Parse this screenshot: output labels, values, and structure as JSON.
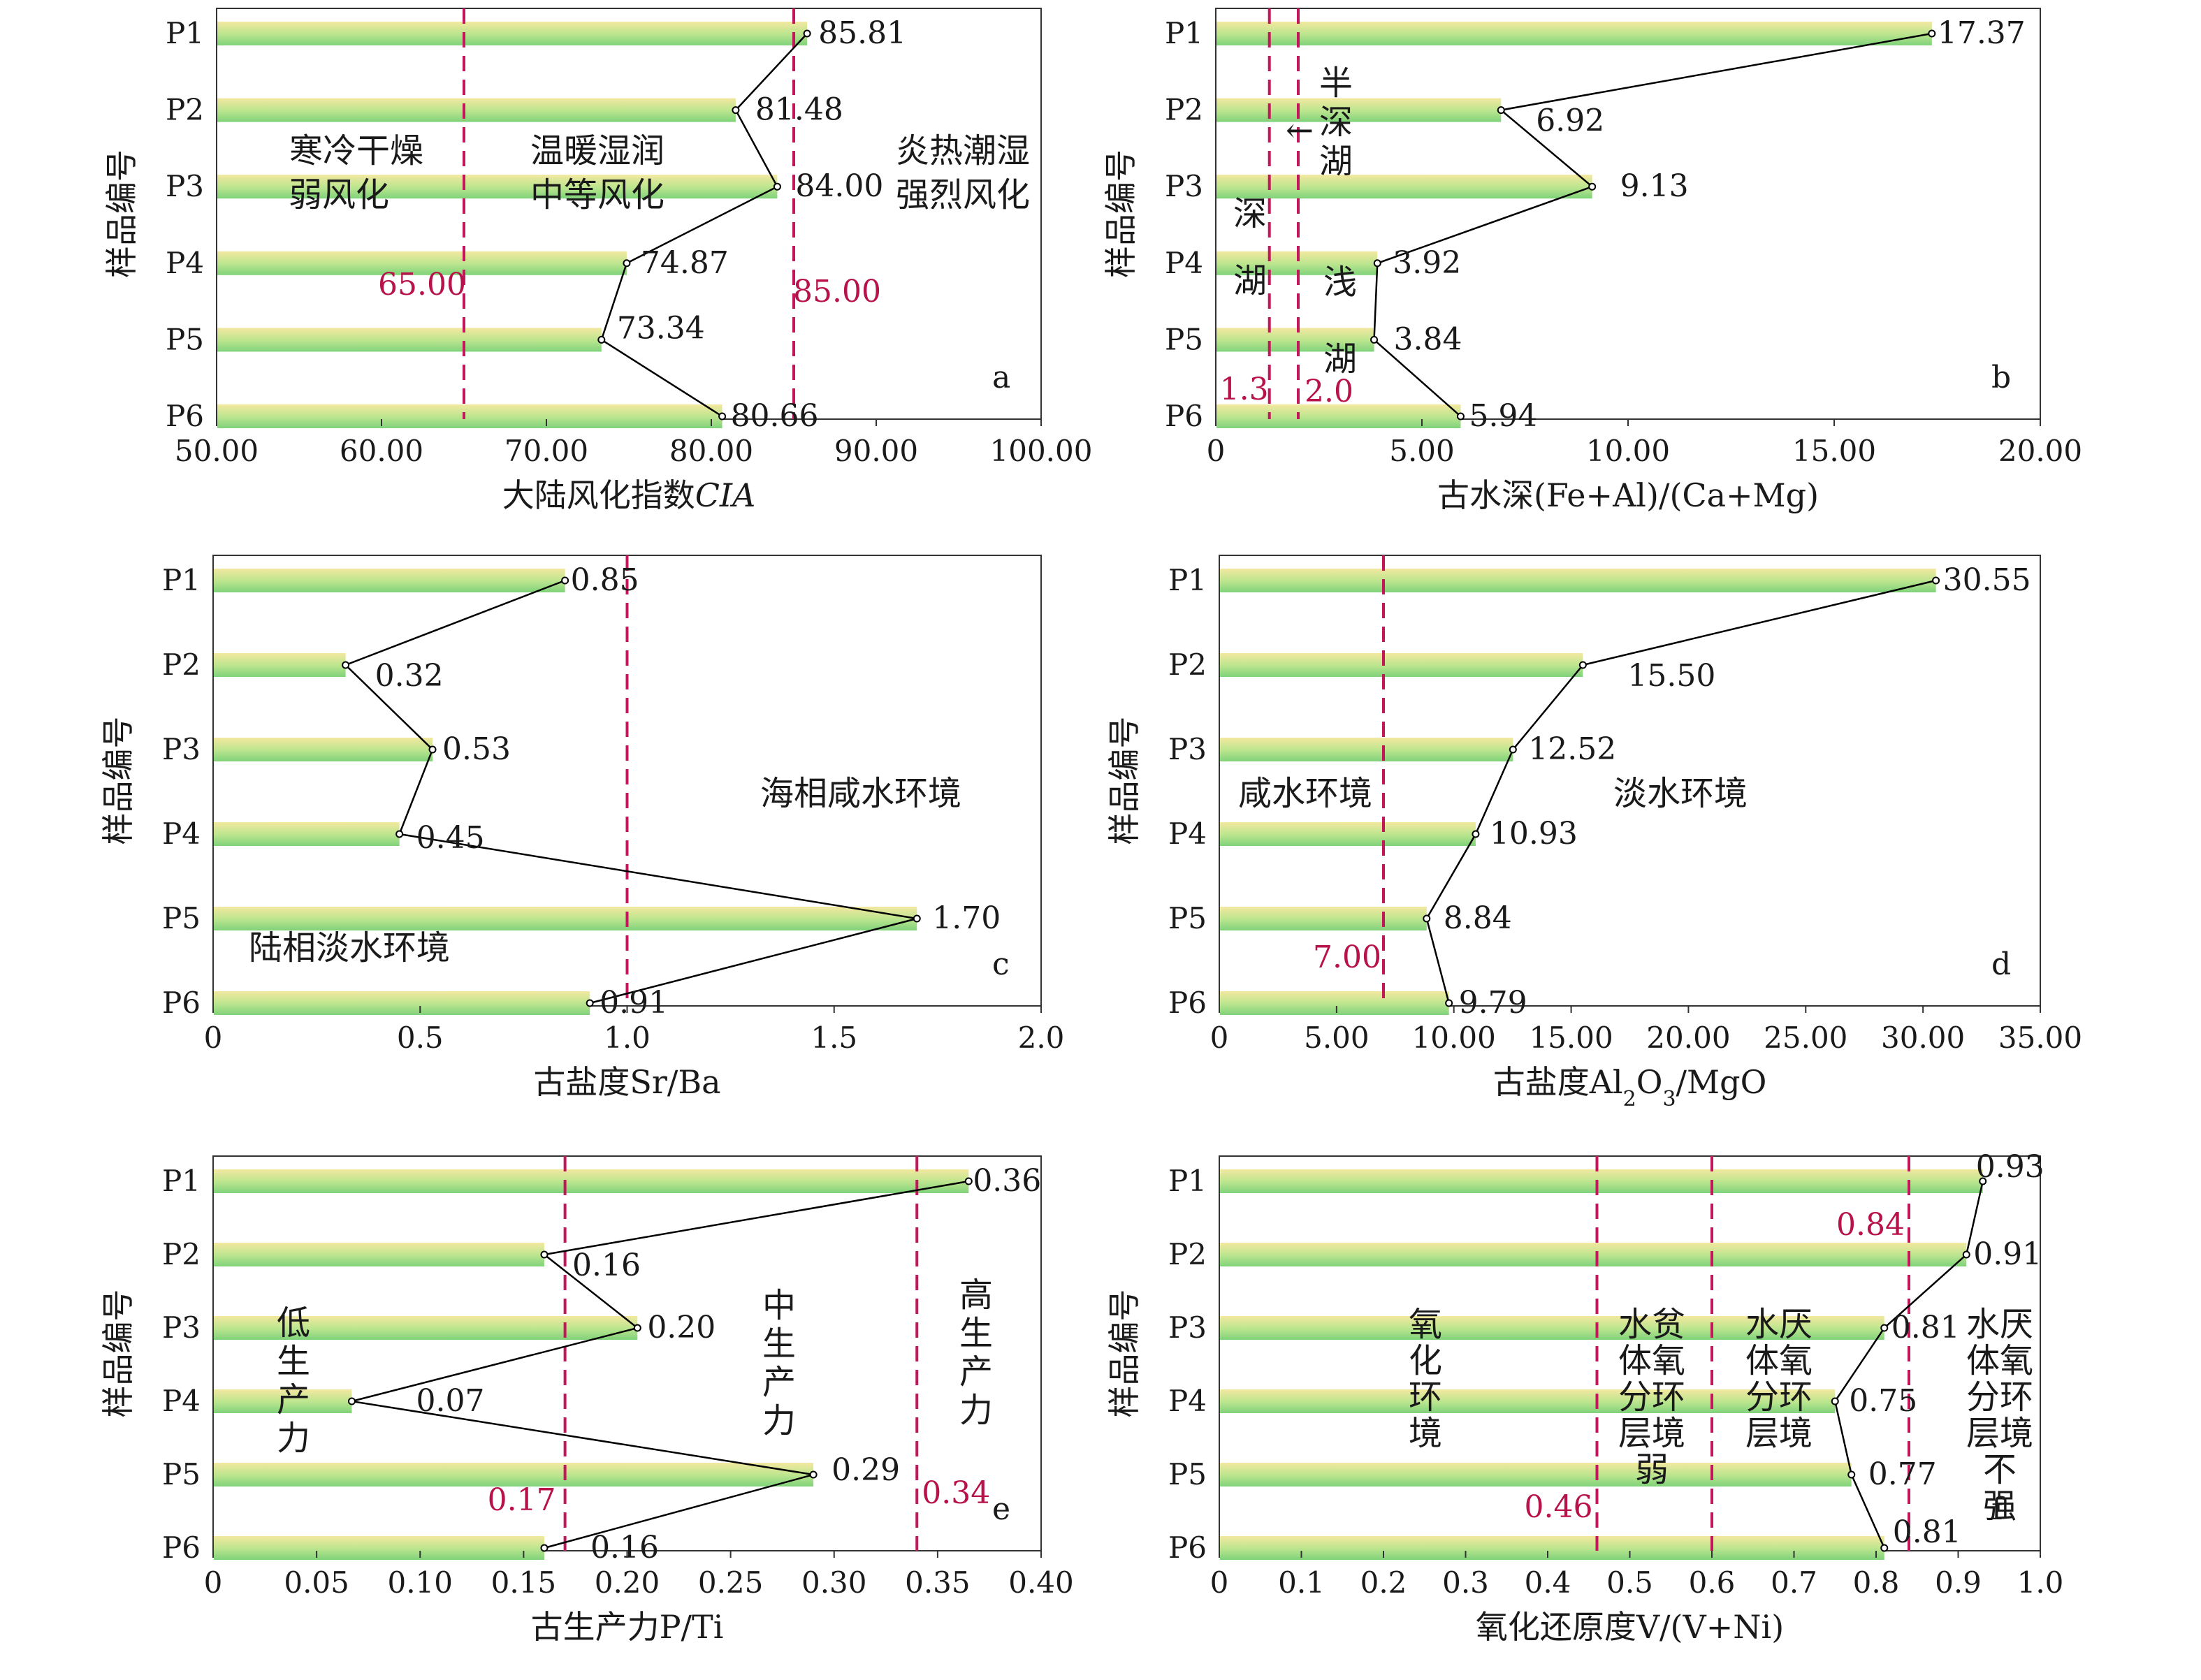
{
  "colors": {
    "bar_top": "#f3e8a0",
    "bar_bottom": "#7fd27a",
    "threshold_line": "#c2185b",
    "threshold_label": "#b8124a",
    "connector": "#000000"
  },
  "chart_data": [
    {
      "type": "bar",
      "orientation": "horizontal",
      "panel_label": "a",
      "ylabel": "样品编号",
      "xlabel": "大陆风化指数",
      "xlabel_italic": "CIA",
      "categories": [
        "P1",
        "P2",
        "P3",
        "P4",
        "P5",
        "P6"
      ],
      "values": [
        85.81,
        81.48,
        84.0,
        74.87,
        73.34,
        80.66
      ],
      "value_labels": [
        "85.81",
        "81.48",
        "84.00",
        "74.87",
        "73.34",
        "80.66"
      ],
      "xlim": [
        50,
        100
      ],
      "xticks": [
        "50.00",
        "60.00",
        "70.00",
        "80.00",
        "90.00",
        "100.00"
      ],
      "thresholds": [
        {
          "value": 65,
          "label": "65.00"
        },
        {
          "value": 85,
          "label": "85.00"
        }
      ],
      "zones": [
        [
          "寒冷干燥",
          "弱风化"
        ],
        [
          "温暖湿润",
          "中等风化"
        ],
        [
          "炎热潮湿",
          "强烈风化"
        ]
      ]
    },
    {
      "type": "bar",
      "orientation": "horizontal",
      "panel_label": "b",
      "ylabel": "样品编号",
      "xlabel": "古水深(Fe+Al)/(Ca+Mg)",
      "categories": [
        "P1",
        "P2",
        "P3",
        "P4",
        "P5",
        "P6"
      ],
      "values": [
        17.37,
        6.92,
        9.13,
        3.92,
        3.84,
        5.94
      ],
      "value_labels": [
        "17.37",
        "6.92",
        "9.13",
        "3.92",
        "3.84",
        "5.94"
      ],
      "xlim": [
        0,
        20
      ],
      "xticks": [
        "0",
        "5.00",
        "10.00",
        "15.00",
        "20.00"
      ],
      "thresholds": [
        {
          "value": 1.3,
          "label": "1.3"
        },
        {
          "value": 2.0,
          "label": "2.0"
        }
      ],
      "zones": [
        "半",
        "深",
        "湖",
        "深",
        "湖",
        "浅",
        "湖"
      ],
      "arrow_glyph": "←"
    },
    {
      "type": "bar",
      "orientation": "horizontal",
      "panel_label": "c",
      "ylabel": "样品编号",
      "xlabel": "古盐度Sr/Ba",
      "categories": [
        "P1",
        "P2",
        "P3",
        "P4",
        "P5",
        "P6"
      ],
      "values": [
        0.85,
        0.32,
        0.53,
        0.45,
        1.7,
        0.91
      ],
      "value_labels": [
        "0.85",
        "0.32",
        "0.53",
        "0.45",
        "1.70",
        "0.91"
      ],
      "xlim": [
        0,
        2.0
      ],
      "xticks": [
        "0",
        "0.5",
        "1.0",
        "1.5",
        "2.0"
      ],
      "thresholds": [
        {
          "value": 1.0,
          "label": ""
        }
      ],
      "zones": [
        "海相咸水环境",
        "陆相淡水环境"
      ]
    },
    {
      "type": "bar",
      "orientation": "horizontal",
      "panel_label": "d",
      "ylabel": "样品编号",
      "xlabel_parts": [
        "古盐度Al",
        "2",
        "O",
        "3",
        "/MgO"
      ],
      "categories": [
        "P1",
        "P2",
        "P3",
        "P4",
        "P5",
        "P6"
      ],
      "values": [
        30.55,
        15.5,
        12.52,
        10.93,
        8.84,
        9.79
      ],
      "value_labels": [
        "30.55",
        "15.50",
        "12.52",
        "10.93",
        "8.84",
        "9.79"
      ],
      "xlim": [
        0,
        35
      ],
      "xticks": [
        "0",
        "5.00",
        "10.00",
        "15.00",
        "20.00",
        "25.00",
        "30.00",
        "35.00"
      ],
      "thresholds": [
        {
          "value": 7.0,
          "label": "7.00"
        }
      ],
      "zones": [
        "咸水环境",
        "淡水环境"
      ]
    },
    {
      "type": "bar",
      "orientation": "horizontal",
      "panel_label": "e",
      "ylabel": "样品编号",
      "xlabel": "古生产力P/Ti",
      "categories": [
        "P1",
        "P2",
        "P3",
        "P4",
        "P5",
        "P6"
      ],
      "values": [
        0.365,
        0.16,
        0.205,
        0.067,
        0.29,
        0.16
      ],
      "value_labels": [
        "0.36",
        "0.16",
        "0.20",
        "0.07",
        "0.29",
        "0.16"
      ],
      "xlim": [
        0,
        0.4
      ],
      "xticks": [
        "0",
        "0.05",
        "0.10",
        "0.15",
        "0.20",
        "0.25",
        "0.30",
        "0.35",
        "0.40"
      ],
      "thresholds": [
        {
          "value": 0.17,
          "label": "0.17"
        },
        {
          "value": 0.34,
          "label": "0.34"
        }
      ],
      "zones": [
        "低生产力",
        "中生产力",
        "高生产力"
      ]
    },
    {
      "type": "bar",
      "orientation": "horizontal",
      "panel_label": "f",
      "ylabel": "样品编号",
      "xlabel": "氧化还原度V/(V+Ni)",
      "categories": [
        "P1",
        "P2",
        "P3",
        "P4",
        "P5",
        "P6"
      ],
      "values": [
        0.93,
        0.91,
        0.81,
        0.75,
        0.77,
        0.81
      ],
      "value_labels": [
        "0.93",
        "0.91",
        "0.81",
        "0.75",
        "0.77",
        "0.81"
      ],
      "xlim": [
        0,
        1.0
      ],
      "xticks": [
        "0",
        "0.1",
        "0.2",
        "0.3",
        "0.4",
        "0.5",
        "0.6",
        "0.7",
        "0.8",
        "0.9",
        "1.0"
      ],
      "highlight_tick": "0.6",
      "thresholds": [
        {
          "value": 0.46,
          "label": "0.46"
        },
        {
          "value": 0.6,
          "label": ""
        },
        {
          "value": 0.84,
          "label": "0.84"
        }
      ],
      "zones": [
        "氧化环境",
        [
          "水贫",
          "体氧",
          "分环",
          "层境",
          "弱"
        ],
        [
          "水厌",
          "体氧",
          "分环",
          "层境"
        ],
        [
          "水厌",
          "体氧",
          "分环",
          "层境",
          "不",
          "强"
        ]
      ]
    }
  ]
}
